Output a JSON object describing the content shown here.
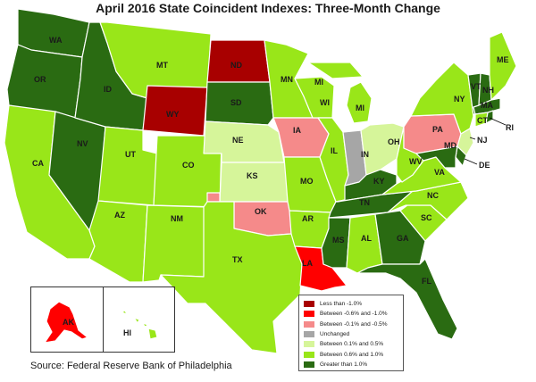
{
  "title": "April 2016 State Coincident Indexes: Three-Month Change",
  "source": "Source: Federal Reserve Bank of Philadelphia",
  "colors": {
    "lt_neg1": "#a80000",
    "neg06_neg1": "#ff0000",
    "neg01_neg05": "#f58a8a",
    "unchanged": "#a6a6a6",
    "p01_p05": "#d6f59a",
    "p06_p1": "#99e619",
    "gt_p1": "#2a6b12"
  },
  "legend": [
    {
      "key": "lt_neg1",
      "label": "Less than -1.0%"
    },
    {
      "key": "neg06_neg1",
      "label": "Between -0.6% and -1.0%"
    },
    {
      "key": "neg01_neg05",
      "label": "Between -0.1% and -0.5%"
    },
    {
      "key": "unchanged",
      "label": "Unchanged"
    },
    {
      "key": "p01_p05",
      "label": "Between 0.1% and 0.5%"
    },
    {
      "key": "p06_p1",
      "label": "Between 0.6% and 1.0%"
    },
    {
      "key": "gt_p1",
      "label": "Greater than 1.0%"
    }
  ],
  "states": {
    "WA": "gt_p1",
    "OR": "gt_p1",
    "ID": "gt_p1",
    "NV": "gt_p1",
    "CA": "p06_p1",
    "MT": "p06_p1",
    "WY": "lt_neg1",
    "UT": "p06_p1",
    "CO": "p06_p1",
    "AZ": "p06_p1",
    "NM": "p06_p1",
    "ND": "lt_neg1",
    "SD": "gt_p1",
    "NE": "p01_p05",
    "KS": "p01_p05",
    "OK": "neg01_neg05",
    "TX": "p06_p1",
    "MN": "p06_p1",
    "IA": "neg01_neg05",
    "MO": "p06_p1",
    "AR": "p06_p1",
    "LA": "neg06_neg1",
    "WI": "p06_p1",
    "IL": "p06_p1",
    "MI": "p06_p1",
    "IN": "unchanged",
    "OH": "p01_p05",
    "KY": "gt_p1",
    "TN": "gt_p1",
    "MS": "gt_p1",
    "AL": "p06_p1",
    "GA": "gt_p1",
    "FL": "gt_p1",
    "SC": "p06_p1",
    "NC": "p06_p1",
    "VA": "p06_p1",
    "WV": "p06_p1",
    "PA": "neg01_neg05",
    "NY": "p06_p1",
    "VT": "gt_p1",
    "NH": "gt_p1",
    "ME": "p06_p1",
    "MA": "gt_p1",
    "RI": "gt_p1",
    "CT": "p06_p1",
    "NJ": "p01_p05",
    "DE": "gt_p1",
    "MD": "gt_p1",
    "AK": "neg06_neg1",
    "HI": "p06_p1"
  }
}
